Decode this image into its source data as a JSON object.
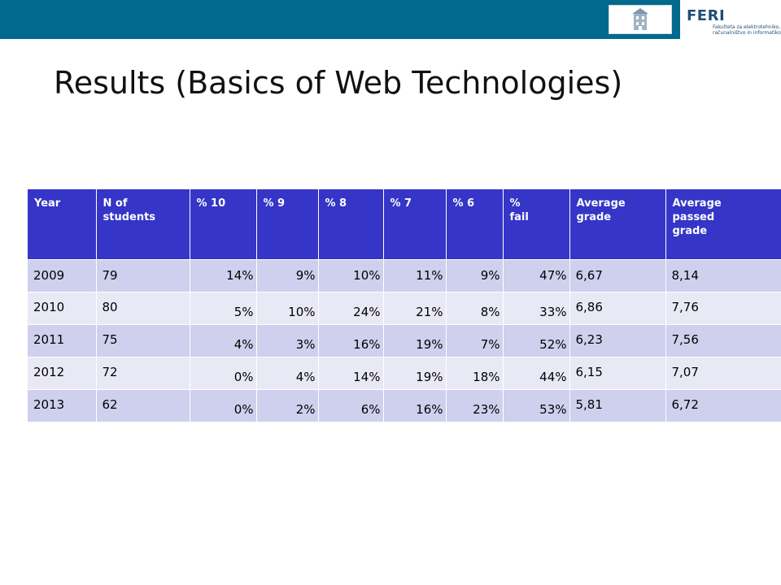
{
  "header": {
    "logo_name": "FERI",
    "logo_subtitle": "Fakulteta za elektrotehniko, računalništvo in informatiko",
    "bar_color": "#006a8e"
  },
  "slide": {
    "title": "Results (Basics of Web Technologies)"
  },
  "table": {
    "header_color": "#3535c8",
    "columns": [
      "Year",
      "N of\nstudents",
      "% 10",
      "% 9",
      "% 8",
      "% 7",
      "% 6",
      "%\nfail",
      "Average\ngrade",
      "Average\npassed\ngrade"
    ],
    "rows": [
      {
        "year": "2009",
        "n": "79",
        "p10": "14%",
        "p9": "9%",
        "p8": "10%",
        "p7": "11%",
        "p6": "9%",
        "fail": "47%",
        "avg": "6,67",
        "avg_passed": "8,14"
      },
      {
        "year": "2010",
        "n": "80",
        "p10": "5%",
        "p9": "10%",
        "p8": "24%",
        "p7": "21%",
        "p6": "8%",
        "fail": "33%",
        "avg": "6,86",
        "avg_passed": "7,76"
      },
      {
        "year": "2011",
        "n": "75",
        "p10": "4%",
        "p9": "3%",
        "p8": "16%",
        "p7": "19%",
        "p6": "7%",
        "fail": "52%",
        "avg": "6,23",
        "avg_passed": "7,56"
      },
      {
        "year": "2012",
        "n": "72",
        "p10": "0%",
        "p9": "4%",
        "p8": "14%",
        "p7": "19%",
        "p6": "18%",
        "fail": "44%",
        "avg": "6,15",
        "avg_passed": "7,07"
      },
      {
        "year": "2013",
        "n": "62",
        "p10": "0%",
        "p9": "2%",
        "p8": "6%",
        "p7": "16%",
        "p6": "23%",
        "fail": "53%",
        "avg": "5,81",
        "avg_passed": "6,72"
      }
    ]
  }
}
